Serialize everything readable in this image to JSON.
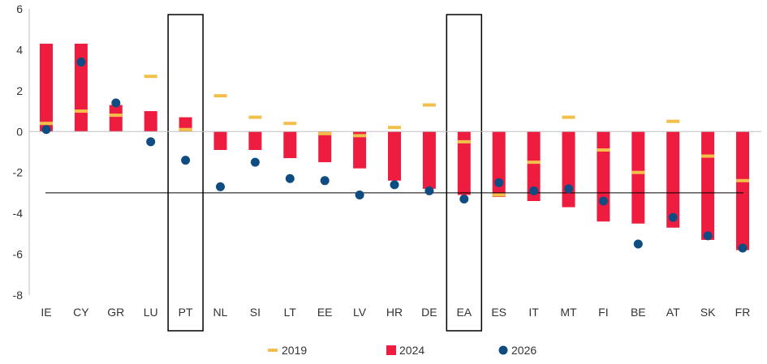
{
  "chart_data": {
    "type": "bar",
    "categories": [
      "IE",
      "CY",
      "GR",
      "LU",
      "PT",
      "NL",
      "SI",
      "LT",
      "EE",
      "LV",
      "HR",
      "DE",
      "EA",
      "ES",
      "IT",
      "MT",
      "FI",
      "BE",
      "AT",
      "SK",
      "FR"
    ],
    "highlighted": [
      "PT",
      "EA"
    ],
    "reference_line": -3,
    "ylim": [
      -8,
      6
    ],
    "yticks": [
      -8,
      -6,
      -4,
      -2,
      0,
      2,
      4,
      6
    ],
    "grid": false,
    "legend_position": "bottom",
    "series": [
      {
        "name": "2019",
        "kind": "dash",
        "color": "#F2C04A",
        "values": [
          0.4,
          1.0,
          0.8,
          2.7,
          0.1,
          1.75,
          0.7,
          0.4,
          -0.1,
          -0.2,
          0.2,
          1.3,
          -0.5,
          -3.1,
          -1.5,
          0.7,
          -0.9,
          -2.0,
          0.5,
          -1.2,
          -2.4
        ]
      },
      {
        "name": "2024",
        "kind": "bar",
        "color": "#EE1C3F",
        "values": [
          4.3,
          4.3,
          1.3,
          1.0,
          0.7,
          -0.9,
          -0.9,
          -1.3,
          -1.5,
          -1.8,
          -2.4,
          -2.8,
          -3.1,
          -3.2,
          -3.4,
          -3.7,
          -4.4,
          -4.5,
          -4.7,
          -5.3,
          -5.8
        ]
      },
      {
        "name": "2026",
        "kind": "dot",
        "color": "#0F4C81",
        "values": [
          0.1,
          3.4,
          1.4,
          -0.5,
          -1.4,
          -2.7,
          -1.5,
          -2.3,
          -2.4,
          -3.1,
          -2.6,
          -2.9,
          -3.3,
          -2.5,
          -2.9,
          -2.8,
          -3.4,
          -5.5,
          -4.2,
          -5.1,
          -5.7
        ]
      }
    ]
  }
}
